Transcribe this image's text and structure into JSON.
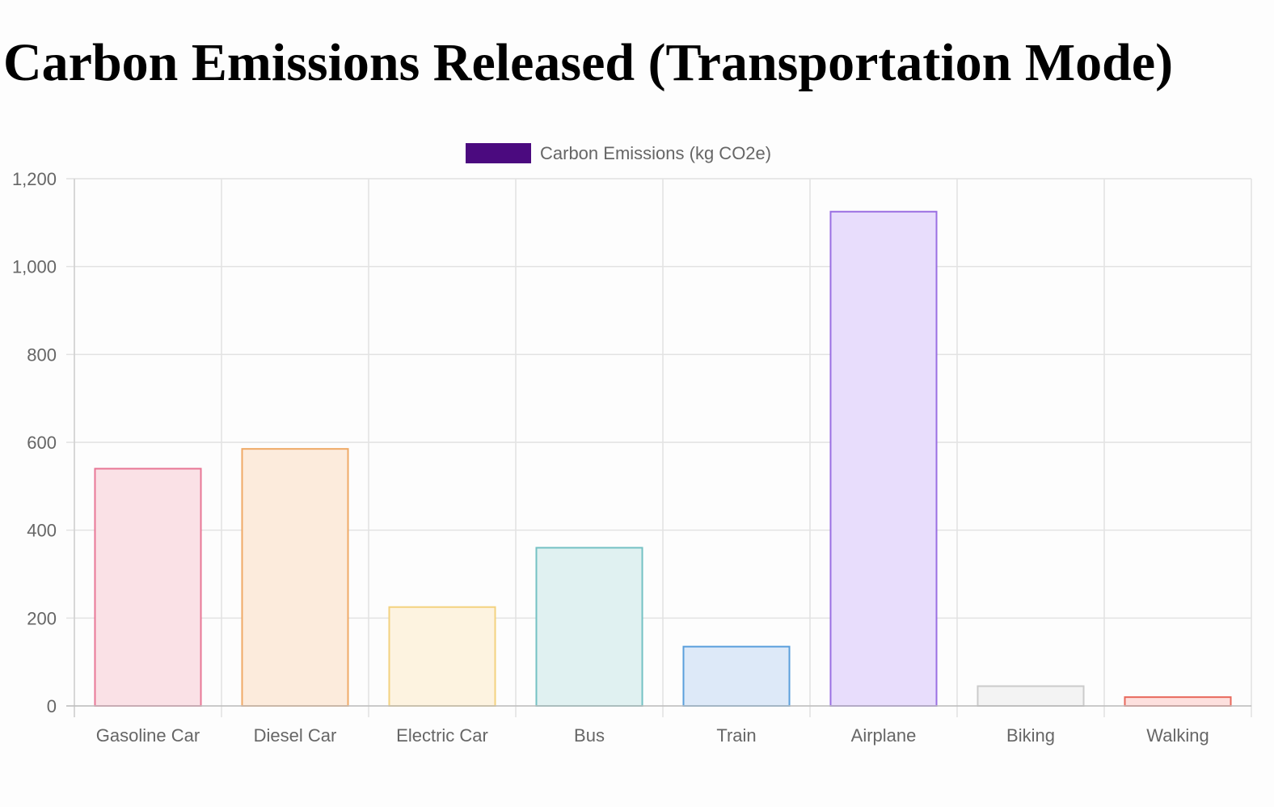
{
  "page": {
    "title": "Carbon Emissions Released (Transportation Mode)"
  },
  "chart_data": {
    "type": "bar",
    "categories": [
      "Gasoline Car",
      "Diesel Car",
      "Electric Car",
      "Bus",
      "Train",
      "Airplane",
      "Biking",
      "Walking"
    ],
    "series": [
      {
        "name": "Carbon Emissions (kg CO2e)",
        "values": [
          540,
          585,
          225,
          360,
          135,
          1125,
          45,
          20
        ],
        "legend_color": "#4b0a7f",
        "fill_colors": [
          "#fae1e6",
          "#fcebdc",
          "#fdf3e0",
          "#e0f1f1",
          "#dde9f8",
          "#e8ddfc",
          "#f3f3f3",
          "#fde0de"
        ],
        "border_colors": [
          "#e87796",
          "#efa966",
          "#f3d27f",
          "#74c1c3",
          "#5a9fdc",
          "#9a6fe2",
          "#cbcbcb",
          "#e8695c"
        ]
      }
    ],
    "xlabel": "",
    "ylabel": "",
    "ylim": [
      0,
      1200
    ],
    "yticks": [
      0,
      200,
      400,
      600,
      800,
      1000,
      1200
    ],
    "ytick_labels": [
      "0",
      "200",
      "400",
      "600",
      "800",
      "1,000",
      "1,200"
    ],
    "grid": true,
    "legend_position": "top-center"
  }
}
